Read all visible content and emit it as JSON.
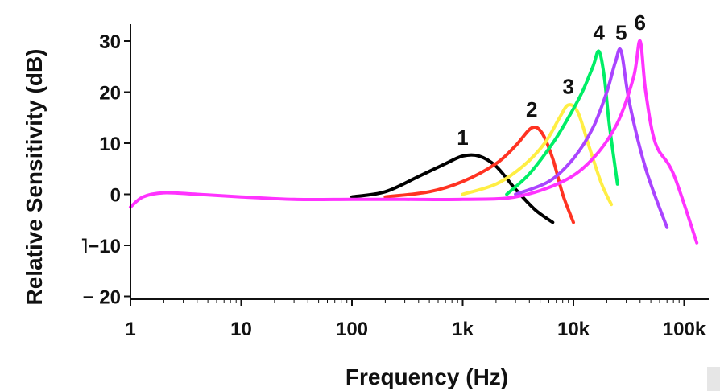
{
  "chart_data": {
    "type": "line",
    "title": "",
    "xlabel": "Frequency (Hz)",
    "ylabel": "Relative Sensitivity (dB)",
    "xscale": "log",
    "xlim": [
      1,
      150000
    ],
    "ylim": [
      -20,
      35
    ],
    "xticks": [
      1,
      10,
      100,
      1000,
      10000,
      100000
    ],
    "xtick_labels": [
      "1",
      "10",
      "100",
      "1k",
      "10k",
      "100k"
    ],
    "yticks": [
      30,
      20,
      10,
      0,
      -10,
      -20
    ],
    "ytick_labels": [
      "30",
      "20",
      "10",
      "0",
      "˥−10",
      "− 20"
    ],
    "grid": false,
    "legend": "none",
    "series": [
      {
        "name": "1",
        "color": "#000000",
        "x": [
          100,
          200,
          400,
          700,
          1000,
          1400,
          2000,
          3000,
          4500,
          6500
        ],
        "y": [
          -0.5,
          0.5,
          3.5,
          6,
          7.5,
          7.5,
          5.5,
          1,
          -3,
          -5.5
        ]
      },
      {
        "name": "2",
        "color": "#ff3322",
        "x": [
          200,
          500,
          1000,
          2000,
          3000,
          4200,
          5200,
          6500,
          8000,
          10000
        ],
        "y": [
          -0.5,
          0.5,
          2.5,
          6,
          9.5,
          13,
          12,
          7,
          0,
          -5.5
        ]
      },
      {
        "name": "3",
        "color": "#ffee44",
        "x": [
          1000,
          2000,
          3500,
          5500,
          7500,
          9000,
          11000,
          14000,
          18000,
          22000
        ],
        "y": [
          0,
          2,
          5.5,
          10,
          15,
          17.5,
          16,
          9,
          2,
          -2
        ]
      },
      {
        "name": "4",
        "color": "#00ee66",
        "x": [
          2500,
          4000,
          6500,
          9000,
          12000,
          15000,
          17000,
          19000,
          21000,
          25000
        ],
        "y": [
          0,
          4,
          10,
          15,
          20,
          25,
          28,
          23,
          14,
          2
        ]
      },
      {
        "name": "5",
        "color": "#aa44ff",
        "x": [
          3000,
          6000,
          10000,
          15000,
          20000,
          24000,
          27000,
          32000,
          45000,
          70000
        ],
        "y": [
          0,
          2.5,
          7,
          13,
          20,
          26,
          28,
          18,
          5,
          -6.5
        ]
      },
      {
        "name": "6",
        "color": "#ff33ff",
        "x": [
          1,
          1.3,
          2,
          4,
          10,
          30,
          100,
          300,
          1000,
          3000,
          8000,
          15000,
          25000,
          35000,
          40000,
          45000,
          55000,
          80000,
          130000
        ],
        "y": [
          -2.5,
          -0.5,
          0.3,
          0,
          -0.5,
          -1,
          -1,
          -1,
          -1,
          -0.5,
          2.5,
          7,
          14,
          23,
          30,
          20,
          10,
          4,
          -9.5
        ]
      }
    ]
  }
}
